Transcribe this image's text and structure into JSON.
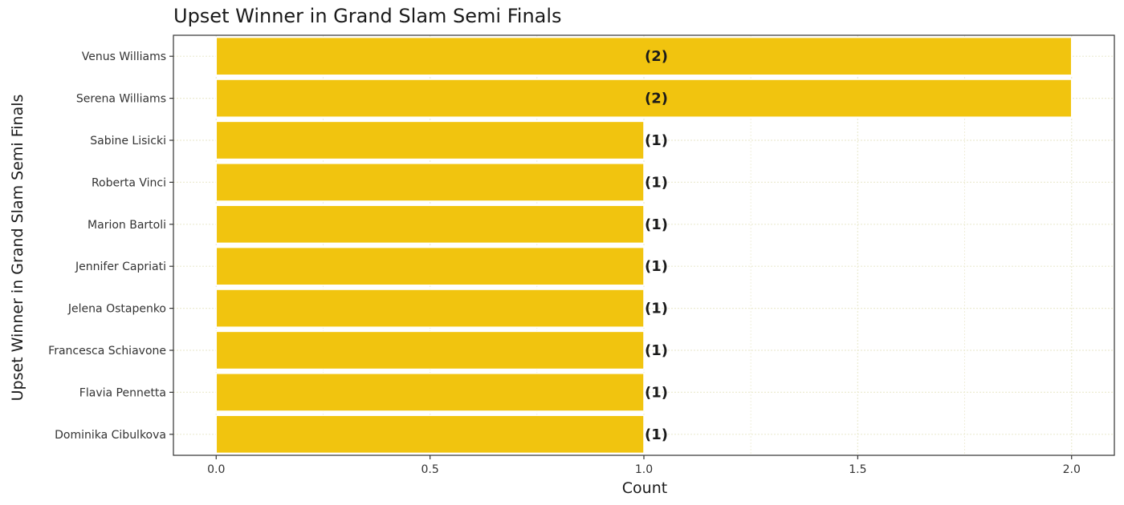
{
  "chart_data": {
    "type": "bar",
    "orientation": "horizontal",
    "title": "Upset Winner in Grand Slam Semi Finals",
    "xlabel": "Count",
    "ylabel": "Upset Winner in Grand Slam Semi Finals",
    "categories": [
      "Venus Williams",
      "Serena Williams",
      "Sabine Lisicki",
      "Roberta Vinci",
      "Marion Bartoli",
      "Jennifer Capriati",
      "Jelena Ostapenko",
      "Francesca Schiavone",
      "Flavia Pennetta",
      "Dominika Cibulkova"
    ],
    "values": [
      2,
      2,
      1,
      1,
      1,
      1,
      1,
      1,
      1,
      1
    ],
    "data_labels": [
      "(2)",
      "(2)",
      "(1)",
      "(1)",
      "(1)",
      "(1)",
      "(1)",
      "(1)",
      "(1)",
      "(1)"
    ],
    "xlim": [
      -0.1,
      2.1
    ],
    "xticks": [
      0.0,
      0.5,
      1.0,
      1.5,
      2.0
    ],
    "xtick_labels": [
      "0.0",
      "0.5",
      "1.0",
      "1.5",
      "2.0"
    ],
    "grid": true,
    "legend": "none",
    "colors": {
      "bar_fill": "#F1C40F",
      "bar_outline": "#FFFFFF",
      "grid": "#ECEBD2",
      "axis": "#333333"
    }
  }
}
